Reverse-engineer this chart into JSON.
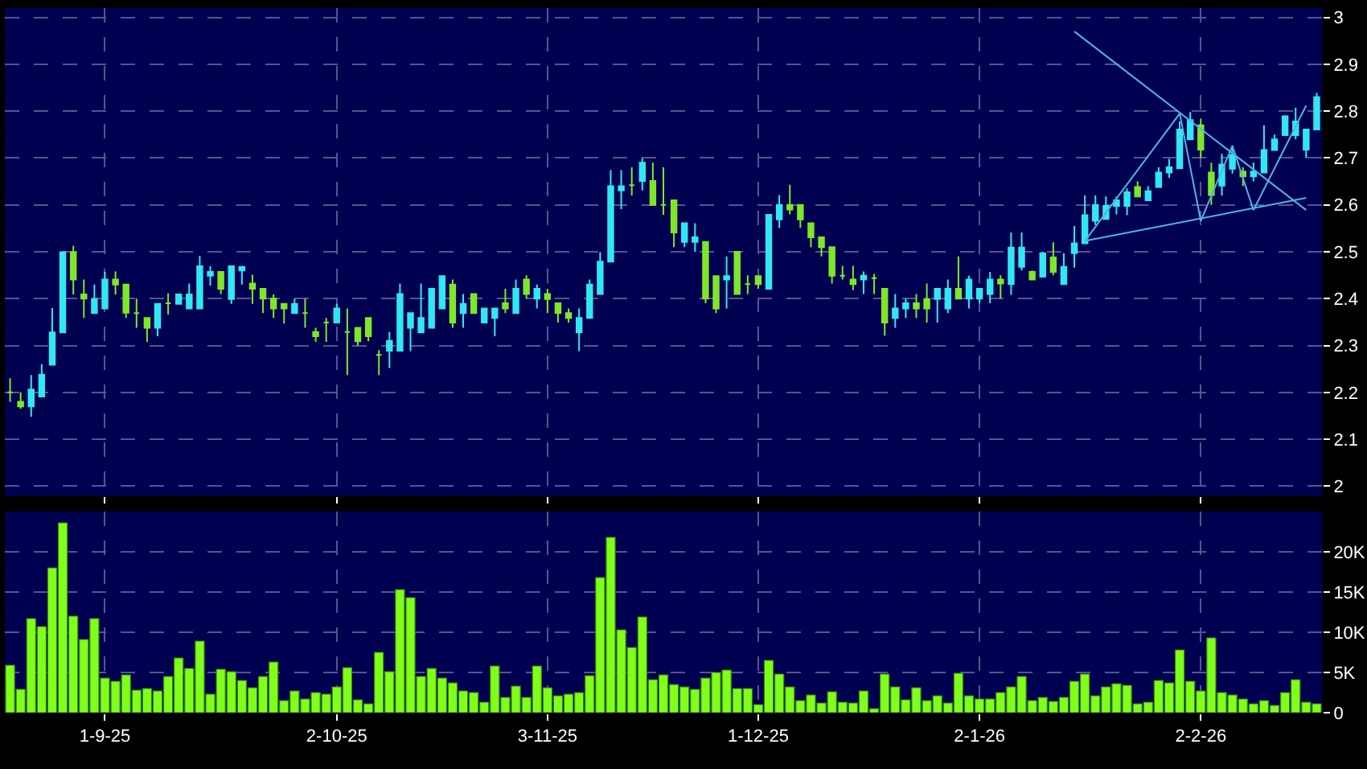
{
  "chart_data": [
    {
      "type": "candlestick",
      "categories": [
        null,
        null,
        null,
        null,
        null,
        null,
        null,
        null,
        null,
        null,
        null,
        null,
        null,
        null,
        null,
        null,
        null,
        null,
        null,
        null,
        null,
        null,
        null,
        null,
        null,
        null,
        null,
        null,
        null,
        null,
        null,
        null,
        null,
        null,
        null,
        null,
        null,
        null,
        null,
        null,
        null,
        null,
        null,
        null,
        null,
        null,
        null,
        null,
        null,
        null,
        null,
        null,
        null,
        null,
        null,
        null,
        null,
        null,
        null,
        null,
        null,
        null,
        null,
        null,
        null,
        null,
        null,
        null,
        null,
        null,
        null,
        null,
        null,
        null,
        null,
        null,
        null,
        null,
        null,
        null,
        null,
        null,
        null,
        null,
        null,
        null,
        null,
        null,
        null,
        null,
        null,
        null,
        null,
        null,
        null,
        null,
        null,
        null,
        null,
        null,
        null,
        null,
        null,
        null,
        null,
        null,
        null,
        null,
        null,
        null,
        null,
        null,
        null,
        null,
        null,
        null,
        null,
        null,
        null,
        null,
        null,
        null,
        null,
        null,
        null
      ],
      "ohlc": [
        [
          2.2,
          2.23,
          2.18,
          2.2
        ],
        [
          2.18,
          2.2,
          2.165,
          2.17
        ],
        [
          2.17,
          2.237,
          2.148,
          2.206
        ],
        [
          2.191,
          2.26,
          2.19,
          2.238
        ],
        [
          2.259,
          2.38,
          2.259,
          2.328
        ],
        [
          2.328,
          2.5,
          2.328,
          2.499
        ],
        [
          2.499,
          2.513,
          2.409,
          2.441
        ],
        [
          2.409,
          2.441,
          2.359,
          2.4
        ],
        [
          2.369,
          2.43,
          2.369,
          2.399
        ],
        [
          2.379,
          2.457,
          2.379,
          2.441
        ],
        [
          2.441,
          2.458,
          2.409,
          2.43
        ],
        [
          2.43,
          2.43,
          2.359,
          2.37
        ],
        [
          2.369,
          2.4,
          2.338,
          2.369
        ],
        [
          2.359,
          2.359,
          2.308,
          2.338
        ],
        [
          2.338,
          2.389,
          2.32,
          2.389
        ],
        [
          2.39,
          2.411,
          2.366,
          2.39
        ],
        [
          2.389,
          2.41,
          2.389,
          2.409
        ],
        [
          2.379,
          2.432,
          2.379,
          2.409
        ],
        [
          2.379,
          2.491,
          2.379,
          2.469
        ],
        [
          2.449,
          2.469,
          2.428,
          2.457
        ],
        [
          2.457,
          2.457,
          2.41,
          2.421
        ],
        [
          2.399,
          2.469,
          2.389,
          2.469
        ],
        [
          2.46,
          2.469,
          2.43,
          2.468
        ],
        [
          2.432,
          2.451,
          2.389,
          2.421
        ],
        [
          2.421,
          2.421,
          2.369,
          2.4
        ],
        [
          2.4,
          2.409,
          2.359,
          2.379
        ],
        [
          2.389,
          2.39,
          2.347,
          2.379
        ],
        [
          2.369,
          2.4,
          2.369,
          2.389
        ],
        [
          2.369,
          2.4,
          2.338,
          2.369
        ],
        [
          2.329,
          2.338,
          2.308,
          2.32
        ],
        [
          2.349,
          2.359,
          2.308,
          2.349
        ],
        [
          2.349,
          2.389,
          2.349,
          2.379
        ],
        [
          2.329,
          2.379,
          2.237,
          2.329
        ],
        [
          2.338,
          2.338,
          2.3,
          2.309
        ],
        [
          2.359,
          2.359,
          2.309,
          2.32
        ],
        [
          2.28,
          2.29,
          2.237,
          2.28
        ],
        [
          2.289,
          2.329,
          2.252,
          2.31
        ],
        [
          2.289,
          2.432,
          2.289,
          2.41
        ],
        [
          2.338,
          2.369,
          2.288,
          2.369
        ],
        [
          2.328,
          2.432,
          2.328,
          2.359
        ],
        [
          2.338,
          2.421,
          2.338,
          2.421
        ],
        [
          2.379,
          2.45,
          2.379,
          2.448
        ],
        [
          2.43,
          2.441,
          2.338,
          2.349
        ],
        [
          2.369,
          2.41,
          2.338,
          2.389
        ],
        [
          2.41,
          2.41,
          2.369,
          2.369
        ],
        [
          2.349,
          2.38,
          2.349,
          2.379
        ],
        [
          2.359,
          2.38,
          2.32,
          2.379
        ],
        [
          2.39,
          2.421,
          2.369,
          2.379
        ],
        [
          2.369,
          2.441,
          2.369,
          2.421
        ],
        [
          2.441,
          2.45,
          2.4,
          2.41
        ],
        [
          2.4,
          2.43,
          2.379,
          2.421
        ],
        [
          2.41,
          2.421,
          2.369,
          2.399
        ],
        [
          2.39,
          2.39,
          2.349,
          2.369
        ],
        [
          2.369,
          2.379,
          2.349,
          2.359
        ],
        [
          2.328,
          2.379,
          2.288,
          2.359
        ],
        [
          2.359,
          2.441,
          2.359,
          2.43
        ],
        [
          2.41,
          2.499,
          2.41,
          2.479
        ],
        [
          2.479,
          2.674,
          2.479,
          2.64
        ],
        [
          2.631,
          2.674,
          2.591,
          2.64
        ],
        [
          2.642,
          2.68,
          2.62,
          2.642
        ],
        [
          2.651,
          2.7,
          2.631,
          2.69
        ],
        [
          2.651,
          2.69,
          2.6,
          2.6
        ],
        [
          2.6,
          2.68,
          2.579,
          2.6
        ],
        [
          2.61,
          2.61,
          2.51,
          2.541
        ],
        [
          2.521,
          2.561,
          2.51,
          2.561
        ],
        [
          2.521,
          2.561,
          2.5,
          2.531
        ],
        [
          2.521,
          2.521,
          2.39,
          2.4
        ],
        [
          2.448,
          2.448,
          2.369,
          2.379
        ],
        [
          2.441,
          2.49,
          2.379,
          2.448
        ],
        [
          2.5,
          2.5,
          2.41,
          2.41
        ],
        [
          2.431,
          2.45,
          2.41,
          2.431
        ],
        [
          2.448,
          2.448,
          2.421,
          2.431
        ],
        [
          2.421,
          2.579,
          2.421,
          2.579
        ],
        [
          2.569,
          2.621,
          2.551,
          2.6
        ],
        [
          2.6,
          2.643,
          2.58,
          2.59
        ],
        [
          2.6,
          2.6,
          2.551,
          2.569
        ],
        [
          2.561,
          2.561,
          2.51,
          2.531
        ],
        [
          2.531,
          2.531,
          2.49,
          2.51
        ],
        [
          2.51,
          2.51,
          2.432,
          2.449
        ],
        [
          2.449,
          2.47,
          2.441,
          2.449
        ],
        [
          2.441,
          2.47,
          2.418,
          2.431
        ],
        [
          2.441,
          2.458,
          2.41,
          2.449
        ],
        [
          2.444,
          2.453,
          2.41,
          2.444
        ],
        [
          2.421,
          2.421,
          2.321,
          2.349
        ],
        [
          2.359,
          2.41,
          2.338,
          2.379
        ],
        [
          2.379,
          2.4,
          2.359,
          2.39
        ],
        [
          2.39,
          2.41,
          2.359,
          2.379
        ],
        [
          2.399,
          2.432,
          2.349,
          2.379
        ],
        [
          2.399,
          2.421,
          2.349,
          2.421
        ],
        [
          2.379,
          2.441,
          2.369,
          2.421
        ],
        [
          2.421,
          2.49,
          2.4,
          2.4
        ],
        [
          2.4,
          2.449,
          2.379,
          2.441
        ],
        [
          2.4,
          2.421,
          2.39,
          2.421
        ],
        [
          2.41,
          2.457,
          2.39,
          2.441
        ],
        [
          2.441,
          2.45,
          2.4,
          2.432
        ],
        [
          2.431,
          2.541,
          2.408,
          2.509
        ],
        [
          2.468,
          2.541,
          2.46,
          2.509
        ],
        [
          2.457,
          2.46,
          2.44,
          2.441
        ],
        [
          2.447,
          2.5,
          2.447,
          2.497
        ],
        [
          2.488,
          2.52,
          2.45,
          2.457
        ],
        [
          2.431,
          2.497,
          2.431,
          2.468
        ],
        [
          2.497,
          2.555,
          2.466,
          2.518
        ],
        [
          2.518,
          2.62,
          2.518,
          2.578
        ],
        [
          2.566,
          2.62,
          2.557,
          2.6
        ],
        [
          2.57,
          2.618,
          2.57,
          2.598
        ],
        [
          2.598,
          2.618,
          2.58,
          2.61
        ],
        [
          2.598,
          2.635,
          2.578,
          2.627
        ],
        [
          2.638,
          2.65,
          2.618,
          2.618
        ],
        [
          2.61,
          2.64,
          2.61,
          2.629
        ],
        [
          2.638,
          2.68,
          2.638,
          2.669
        ],
        [
          2.669,
          2.698,
          2.658,
          2.68
        ],
        [
          2.678,
          2.778,
          2.678,
          2.761
        ],
        [
          2.74,
          2.798,
          2.74,
          2.781
        ],
        [
          2.77,
          2.784,
          2.7,
          2.718
        ],
        [
          2.669,
          2.69,
          2.6,
          2.621
        ],
        [
          2.641,
          2.709,
          2.62,
          2.686
        ],
        [
          2.677,
          2.727,
          2.667,
          2.707
        ],
        [
          2.671,
          2.68,
          2.64,
          2.661
        ],
        [
          2.661,
          2.69,
          2.65,
          2.671
        ],
        [
          2.669,
          2.77,
          2.669,
          2.717
        ],
        [
          2.717,
          2.75,
          2.717,
          2.74
        ],
        [
          2.749,
          2.79,
          2.749,
          2.789
        ],
        [
          2.749,
          2.807,
          2.74,
          2.778
        ],
        [
          2.718,
          2.761,
          2.7,
          2.761
        ],
        [
          2.761,
          2.839,
          2.761,
          2.83
        ]
      ],
      "colors": [
        "#80e62a",
        "#80e62a",
        "#33e6f2",
        "#33e6f2",
        "#33e6f2",
        "#33e6f2",
        "#80e62a",
        "#80e62a",
        "#33e6f2",
        "#33e6f2",
        "#80e62a",
        "#80e62a",
        "#80e62a",
        "#80e62a",
        "#33e6f2",
        "#80e62a",
        "#33e6f2",
        "#33e6f2",
        "#33e6f2",
        "#33e6f2",
        "#80e62a",
        "#33e6f2",
        "#33e6f2",
        "#80e62a",
        "#80e62a",
        "#80e62a",
        "#80e62a",
        "#33e6f2",
        "#80e62a",
        "#80e62a",
        "#80e62a",
        "#33e6f2",
        "#80e62a",
        "#80e62a",
        "#80e62a",
        "#80e62a",
        "#33e6f2",
        "#33e6f2",
        "#33e6f2",
        "#33e6f2",
        "#33e6f2",
        "#33e6f2",
        "#80e62a",
        "#33e6f2",
        "#80e62a",
        "#33e6f2",
        "#33e6f2",
        "#80e62a",
        "#33e6f2",
        "#80e62a",
        "#33e6f2",
        "#80e62a",
        "#80e62a",
        "#80e62a",
        "#33e6f2",
        "#33e6f2",
        "#33e6f2",
        "#33e6f2",
        "#33e6f2",
        "#80e62a",
        "#33e6f2",
        "#80e62a",
        "#80e62a",
        "#80e62a",
        "#33e6f2",
        "#33e6f2",
        "#80e62a",
        "#80e62a",
        "#33e6f2",
        "#80e62a",
        "#80e62a",
        "#80e62a",
        "#33e6f2",
        "#33e6f2",
        "#80e62a",
        "#80e62a",
        "#80e62a",
        "#80e62a",
        "#80e62a",
        "#80e62a",
        "#80e62a",
        "#33e6f2",
        "#80e62a",
        "#80e62a",
        "#33e6f2",
        "#33e6f2",
        "#80e62a",
        "#80e62a",
        "#33e6f2",
        "#33e6f2",
        "#80e62a",
        "#33e6f2",
        "#33e6f2",
        "#33e6f2",
        "#80e62a",
        "#33e6f2",
        "#33e6f2",
        "#80e62a",
        "#33e6f2",
        "#80e62a",
        "#33e6f2",
        "#33e6f2",
        "#33e6f2",
        "#33e6f2",
        "#33e6f2",
        "#33e6f2",
        "#33e6f2",
        "#80e62a",
        "#33e6f2",
        "#33e6f2",
        "#33e6f2",
        "#33e6f2",
        "#33e6f2",
        "#80e62a",
        "#80e62a",
        "#33e6f2",
        "#33e6f2",
        "#80e62a",
        "#33e6f2",
        "#33e6f2",
        "#33e6f2",
        "#33e6f2",
        "#33e6f2",
        "#33e6f2",
        "#33e6f2"
      ],
      "series": [
        {
          "type": "line",
          "color": "#4fb4e8",
          "values": [
            null,
            null,
            null,
            null,
            null,
            null,
            null,
            null,
            null,
            null,
            null,
            null,
            null,
            null,
            null,
            null,
            null,
            null,
            null,
            null,
            null,
            null,
            null,
            null,
            null,
            null,
            null,
            null,
            null,
            null,
            null,
            null,
            null,
            null,
            null,
            null,
            null,
            null,
            null,
            null,
            null,
            null,
            null,
            null,
            null,
            null,
            null,
            null,
            null,
            null,
            null,
            null,
            null,
            null,
            null,
            null,
            null,
            null,
            null,
            null,
            null,
            null,
            null,
            null,
            null,
            null,
            null,
            null,
            null,
            null,
            null,
            null,
            null,
            null,
            null,
            null,
            null,
            null,
            null,
            null,
            null,
            null,
            null,
            null,
            null,
            null,
            null,
            null,
            null,
            null,
            null,
            null,
            null,
            null,
            null,
            null,
            null,
            null,
            null,
            null,
            null,
            2.97,
            null,
            null,
            null,
            null,
            null,
            null,
            null,
            null,
            null,
            null,
            null,
            null,
            null,
            null,
            null,
            null,
            null,
            null,
            null,
            null,
            null,
            2.589,
            null
          ]
        },
        {
          "type": "line",
          "color": "#4fb4e8",
          "values": [
            null,
            null,
            null,
            null,
            null,
            null,
            null,
            null,
            null,
            null,
            null,
            null,
            null,
            null,
            null,
            null,
            null,
            null,
            null,
            null,
            null,
            null,
            null,
            null,
            null,
            null,
            null,
            null,
            null,
            null,
            null,
            null,
            null,
            null,
            null,
            null,
            null,
            null,
            null,
            null,
            null,
            null,
            null,
            null,
            null,
            null,
            null,
            null,
            null,
            null,
            null,
            null,
            null,
            null,
            null,
            null,
            null,
            null,
            null,
            null,
            null,
            null,
            null,
            null,
            null,
            null,
            null,
            null,
            null,
            null,
            null,
            null,
            null,
            null,
            null,
            null,
            null,
            null,
            null,
            null,
            null,
            null,
            null,
            null,
            null,
            null,
            null,
            null,
            null,
            null,
            null,
            null,
            null,
            null,
            null,
            null,
            null,
            null,
            null,
            null,
            null,
            null,
            2.523,
            null,
            null,
            null,
            null,
            null,
            null,
            null,
            null,
            null,
            null,
            null,
            null,
            null,
            null,
            null,
            null,
            null,
            null,
            null,
            null,
            2.615,
            null
          ]
        },
        {
          "type": "line",
          "color": "#4fb4e8",
          "values": [
            null,
            null,
            null,
            null,
            null,
            null,
            null,
            null,
            null,
            null,
            null,
            null,
            null,
            null,
            null,
            null,
            null,
            null,
            null,
            null,
            null,
            null,
            null,
            null,
            null,
            null,
            null,
            null,
            null,
            null,
            null,
            null,
            null,
            null,
            null,
            null,
            null,
            null,
            null,
            null,
            null,
            null,
            null,
            null,
            null,
            null,
            null,
            null,
            null,
            null,
            null,
            null,
            null,
            null,
            null,
            null,
            null,
            null,
            null,
            null,
            null,
            null,
            null,
            null,
            null,
            null,
            null,
            null,
            null,
            null,
            null,
            null,
            null,
            null,
            null,
            null,
            null,
            null,
            null,
            null,
            null,
            null,
            null,
            null,
            null,
            null,
            null,
            null,
            null,
            null,
            null,
            null,
            null,
            null,
            null,
            null,
            null,
            null,
            null,
            null,
            null,
            null,
            2.523,
            null,
            null,
            null,
            null,
            null,
            null,
            null,
            null,
            2.795,
            null,
            2.566,
            null,
            null,
            2.726,
            null,
            2.589,
            null,
            null,
            null,
            null,
            2.812,
            null
          ]
        }
      ],
      "ylim": [
        1.98,
        3.02
      ],
      "yticks": [
        2,
        2.1,
        2.2,
        2.3,
        2.4,
        2.5,
        2.6,
        2.7,
        2.8,
        2.9,
        3
      ],
      "tick_labels": "y",
      "grid": true
    },
    {
      "type": "bar",
      "color": "#80ff1a",
      "categories": [
        null,
        null,
        null,
        null,
        null,
        null,
        null,
        null,
        null,
        "1-9-25",
        null,
        null,
        null,
        null,
        null,
        null,
        null,
        null,
        null,
        null,
        null,
        null,
        null,
        null,
        null,
        null,
        null,
        null,
        null,
        null,
        null,
        "2-10-25",
        null,
        null,
        null,
        null,
        null,
        null,
        null,
        null,
        null,
        null,
        null,
        null,
        null,
        null,
        null,
        null,
        null,
        null,
        null,
        "3-11-25",
        null,
        null,
        null,
        null,
        null,
        null,
        null,
        null,
        null,
        null,
        null,
        null,
        null,
        null,
        null,
        null,
        null,
        null,
        null,
        "1-12-25",
        null,
        null,
        null,
        null,
        null,
        null,
        null,
        null,
        null,
        null,
        null,
        null,
        null,
        null,
        null,
        null,
        null,
        null,
        null,
        null,
        "2-1-26",
        null,
        null,
        null,
        null,
        null,
        null,
        null,
        null,
        null,
        null,
        null,
        null,
        null,
        null,
        null,
        null,
        null,
        null,
        null,
        null,
        "2-2-26",
        null,
        null,
        null,
        null,
        null,
        null,
        null,
        null,
        null,
        null,
        null
      ],
      "values": [
        5900,
        2900,
        11700,
        10700,
        18000,
        23600,
        12000,
        9100,
        11700,
        4300,
        3900,
        4700,
        2800,
        3000,
        2700,
        4500,
        6800,
        5500,
        8900,
        2300,
        5400,
        5100,
        4000,
        3100,
        4500,
        6300,
        1500,
        2700,
        1700,
        2500,
        2300,
        3200,
        5600,
        1600,
        1100,
        7500,
        5100,
        15300,
        14300,
        4500,
        5500,
        4300,
        3700,
        2700,
        2500,
        1300,
        5800,
        1900,
        3300,
        1900,
        5800,
        3100,
        2100,
        2300,
        2500,
        4600,
        16800,
        21800,
        10300,
        8100,
        11900,
        4100,
        4700,
        3500,
        3200,
        2900,
        4300,
        5000,
        5300,
        3000,
        3000,
        1000,
        6500,
        4800,
        3200,
        1500,
        2200,
        1200,
        2600,
        1300,
        1200,
        2700,
        500,
        4800,
        3200,
        1600,
        3100,
        1500,
        2100,
        1200,
        4900,
        2100,
        1700,
        1700,
        2500,
        3200,
        4500,
        1500,
        1900,
        1400,
        1900,
        3900,
        4800,
        2100,
        3200,
        3600,
        3400,
        1100,
        1300,
        4000,
        3700,
        7800,
        3900,
        2700,
        9300,
        2500,
        2200,
        1700,
        1100,
        1500,
        900,
        2500,
        4100,
        1300,
        1100
      ],
      "ylim": [
        0,
        25000
      ],
      "yticks": [
        0,
        {
          "value": 5000,
          "label": "5K"
        },
        {
          "value": 10000,
          "label": "10K"
        },
        {
          "value": 15000,
          "label": "15K"
        },
        {
          "value": 20000,
          "label": "20K"
        }
      ],
      "grid": true
    }
  ]
}
